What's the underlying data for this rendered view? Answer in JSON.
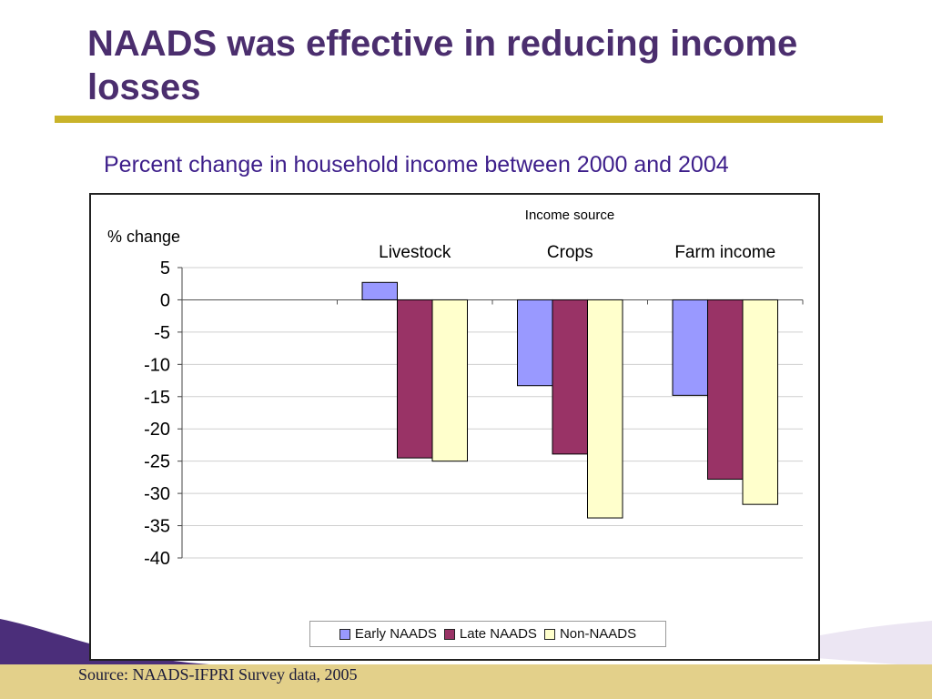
{
  "slide": {
    "title": "NAADS was effective in reducing income losses",
    "subtitle": "Percent change in household income between 2000 and 2004",
    "source": "Source: NAADS-IFPRI Survey data, 2005"
  },
  "chart_data": {
    "type": "bar",
    "title": "",
    "group_header": "Income source",
    "ylabel": "% change",
    "xlabel": "",
    "categories": [
      "",
      "Livestock",
      "Crops",
      "Farm income"
    ],
    "ylim": [
      -40,
      5
    ],
    "yticks": [
      5,
      0,
      -5,
      -10,
      -15,
      -20,
      -25,
      -30,
      -35,
      -40
    ],
    "grid": true,
    "legend_position": "bottom",
    "series": [
      {
        "name": "Early NAADS",
        "color": "#9999ff",
        "values": [
          null,
          2.7,
          -13.3,
          -14.8
        ]
      },
      {
        "name": "Late NAADS",
        "color": "#993366",
        "values": [
          null,
          -24.5,
          -23.9,
          -27.8
        ]
      },
      {
        "name": "Non-NAADS",
        "color": "#ffffcc",
        "values": [
          null,
          -25.0,
          -33.8,
          -31.7
        ]
      }
    ]
  }
}
